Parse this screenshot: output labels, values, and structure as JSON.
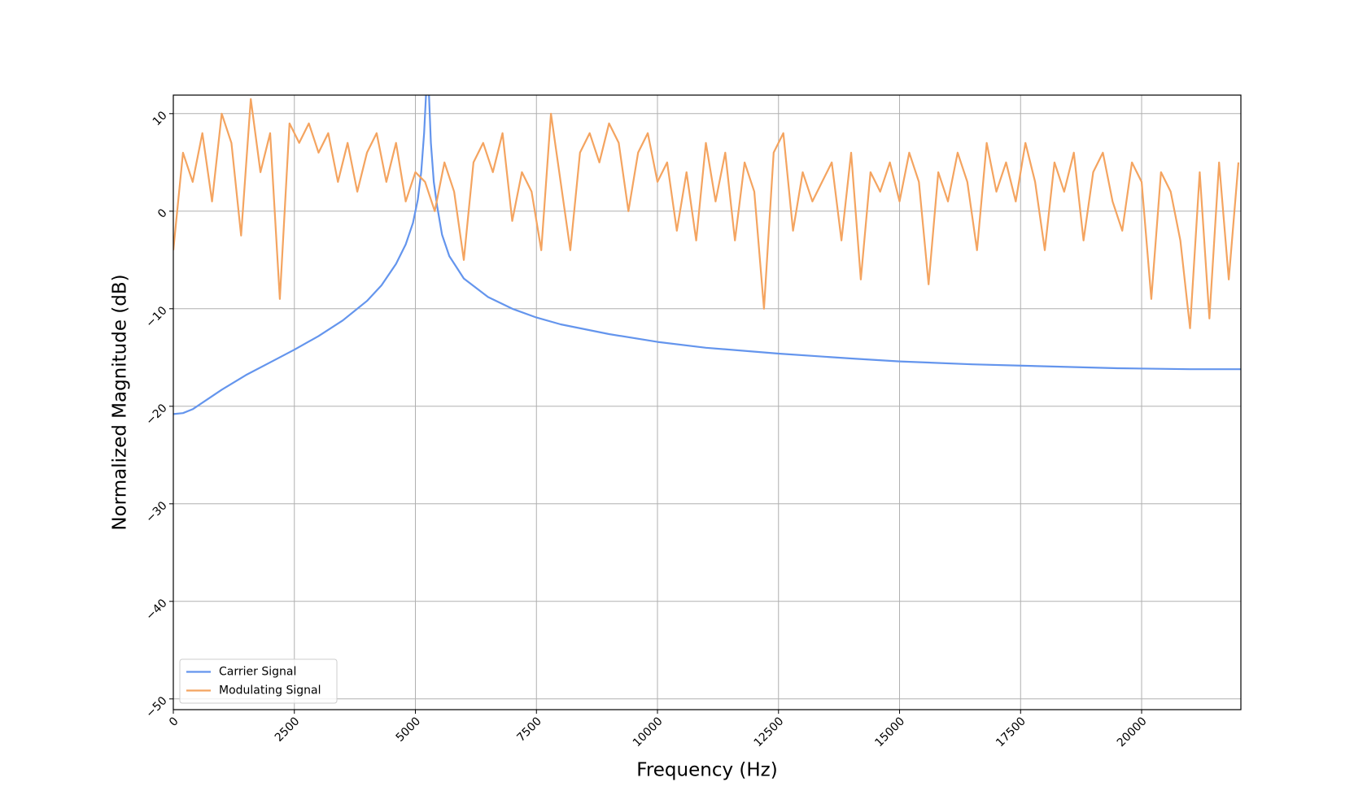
{
  "chart_data": {
    "type": "line",
    "xlabel": "Frequency (Hz)",
    "ylabel": "Normalized Magnitude (dB)",
    "xlim": [
      0,
      22050
    ],
    "ylim": [
      -51.1,
      11.9
    ],
    "xticks": [
      0,
      2500,
      5000,
      7500,
      10000,
      12500,
      15000,
      17500,
      20000
    ],
    "yticks": [
      {
        "value": -50,
        "label": "−50"
      },
      {
        "value": -40,
        "label": "−40"
      },
      {
        "value": -30,
        "label": "−30"
      },
      {
        "value": -20,
        "label": "−20"
      },
      {
        "value": -10,
        "label": "−10"
      },
      0,
      10
    ],
    "grid": true,
    "legend": "lower left",
    "series": [
      {
        "name": "Carrier Signal",
        "color": "#6495ed",
        "x": [
          0,
          200,
          400,
          700,
          1000,
          1500,
          2000,
          2500,
          3000,
          3500,
          4000,
          4300,
          4600,
          4800,
          4950,
          5050,
          5120,
          5180,
          5220,
          5250,
          5280,
          5320,
          5380,
          5450,
          5550,
          5700,
          6000,
          6500,
          7000,
          7500,
          8000,
          9000,
          10000,
          11000,
          12500,
          14000,
          15000,
          16500,
          18000,
          19500,
          21000,
          22050
        ],
        "values": [
          -20.8,
          -20.7,
          -20.3,
          -19.3,
          -18.3,
          -16.8,
          -15.5,
          -14.2,
          -12.8,
          -11.2,
          -9.2,
          -7.6,
          -5.4,
          -3.4,
          -1.2,
          1.2,
          4,
          8,
          12,
          14,
          12,
          7,
          3,
          0.5,
          -2.4,
          -4.6,
          -6.9,
          -8.8,
          -10,
          -10.9,
          -11.6,
          -12.6,
          -13.4,
          -14,
          -14.6,
          -15.1,
          -15.4,
          -15.7,
          -15.9,
          -16.1,
          -16.2,
          -16.2
        ]
      },
      {
        "name": "Modulating Signal",
        "color": "#f4a460",
        "x": [
          0,
          200,
          400,
          600,
          800,
          1000,
          1200,
          1400,
          1600,
          1800,
          2000,
          2200,
          2400,
          2600,
          2800,
          3000,
          3200,
          3400,
          3600,
          3800,
          4000,
          4200,
          4400,
          4600,
          4800,
          5000,
          5200,
          5400,
          5600,
          5800,
          6000,
          6200,
          6400,
          6600,
          6800,
          7000,
          7200,
          7400,
          7600,
          7800,
          8000,
          8200,
          8400,
          8600,
          8800,
          9000,
          9200,
          9400,
          9600,
          9800,
          10000,
          10200,
          10400,
          10600,
          10800,
          11000,
          11200,
          11400,
          11600,
          11800,
          12000,
          12200,
          12400,
          12600,
          12800,
          13000,
          13200,
          13400,
          13600,
          13800,
          14000,
          14200,
          14400,
          14600,
          14800,
          15000,
          15200,
          15400,
          15600,
          15800,
          16000,
          16200,
          16400,
          16600,
          16800,
          17000,
          17200,
          17400,
          17600,
          17800,
          18000,
          18200,
          18400,
          18600,
          18800,
          19000,
          19200,
          19400,
          19600,
          19800,
          20000,
          20200,
          20400,
          20600,
          20800,
          21000,
          21200,
          21400,
          21600,
          21800,
          22000
        ],
        "values": [
          -4,
          6,
          3,
          8,
          1,
          10,
          7,
          -2.5,
          11.5,
          4,
          8,
          -9,
          9,
          7,
          9,
          6,
          8,
          3,
          7,
          2,
          6,
          8,
          3,
          7,
          1,
          4,
          3,
          0,
          5,
          2,
          -5,
          5,
          7,
          4,
          8,
          -1,
          4,
          2,
          -4,
          10,
          3,
          -4,
          6,
          8,
          5,
          9,
          7,
          0,
          6,
          8,
          3,
          5,
          -2,
          4,
          -3,
          7,
          1,
          6,
          -3,
          5,
          2,
          -10,
          6,
          8,
          -2,
          4,
          1,
          3,
          5,
          -3,
          6,
          -7,
          4,
          2,
          5,
          1,
          6,
          3,
          -7.5,
          4,
          1,
          6,
          3,
          -4,
          7,
          2,
          5,
          1,
          7,
          3,
          -4,
          5,
          2,
          6,
          -3,
          4,
          6,
          1,
          -2,
          5,
          3,
          -9,
          4,
          2,
          -3,
          -12,
          4,
          -11,
          5,
          -7,
          5
        ]
      }
    ]
  }
}
